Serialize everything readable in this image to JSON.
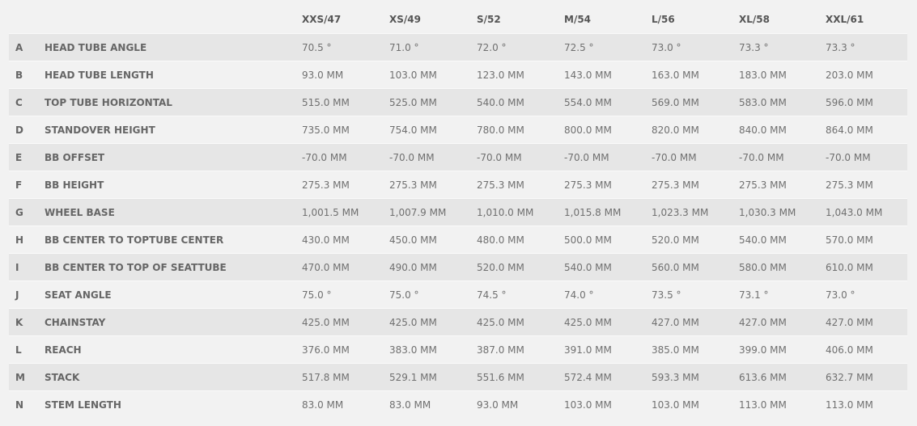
{
  "sizes": [
    "XXS/47",
    "XS/49",
    "S/52",
    "M/54",
    "L/56",
    "XL/58",
    "XXL/61"
  ],
  "rows": [
    {
      "letter": "A",
      "label": "HEAD TUBE ANGLE",
      "values": [
        "70.5 °",
        "71.0 °",
        "72.0 °",
        "72.5 °",
        "73.0 °",
        "73.3 °",
        "73.3 °"
      ]
    },
    {
      "letter": "B",
      "label": "HEAD TUBE LENGTH",
      "values": [
        "93.0 MM",
        "103.0 MM",
        "123.0 MM",
        "143.0 MM",
        "163.0 MM",
        "183.0 MM",
        "203.0 MM"
      ]
    },
    {
      "letter": "C",
      "label": "TOP TUBE HORIZONTAL",
      "values": [
        "515.0 MM",
        "525.0 MM",
        "540.0 MM",
        "554.0 MM",
        "569.0 MM",
        "583.0 MM",
        "596.0 MM"
      ]
    },
    {
      "letter": "D",
      "label": "STANDOVER HEIGHT",
      "values": [
        "735.0 MM",
        "754.0 MM",
        "780.0 MM",
        "800.0 MM",
        "820.0 MM",
        "840.0 MM",
        "864.0 MM"
      ]
    },
    {
      "letter": "E",
      "label": "BB OFFSET",
      "values": [
        "-70.0 MM",
        "-70.0 MM",
        "-70.0 MM",
        "-70.0 MM",
        "-70.0 MM",
        "-70.0 MM",
        "-70.0 MM"
      ]
    },
    {
      "letter": "F",
      "label": "BB HEIGHT",
      "values": [
        "275.3 MM",
        "275.3 MM",
        "275.3 MM",
        "275.3 MM",
        "275.3 MM",
        "275.3 MM",
        "275.3 MM"
      ]
    },
    {
      "letter": "G",
      "label": "WHEEL BASE",
      "values": [
        "1,001.5 MM",
        "1,007.9 MM",
        "1,010.0 MM",
        "1,015.8 MM",
        "1,023.3 MM",
        "1,030.3 MM",
        "1,043.0 MM"
      ]
    },
    {
      "letter": "H",
      "label": "BB CENTER TO TOPTUBE CENTER",
      "values": [
        "430.0 MM",
        "450.0 MM",
        "480.0 MM",
        "500.0 MM",
        "520.0 MM",
        "540.0 MM",
        "570.0 MM"
      ]
    },
    {
      "letter": "I",
      "label": "BB CENTER TO TOP OF SEATTUBE",
      "values": [
        "470.0 MM",
        "490.0 MM",
        "520.0 MM",
        "540.0 MM",
        "560.0 MM",
        "580.0 MM",
        "610.0 MM"
      ]
    },
    {
      "letter": "J",
      "label": "SEAT ANGLE",
      "values": [
        "75.0 °",
        "75.0 °",
        "74.5 °",
        "74.0 °",
        "73.5 °",
        "73.1 °",
        "73.0 °"
      ]
    },
    {
      "letter": "K",
      "label": "CHAINSTAY",
      "values": [
        "425.0 MM",
        "425.0 MM",
        "425.0 MM",
        "425.0 MM",
        "427.0 MM",
        "427.0 MM",
        "427.0 MM"
      ]
    },
    {
      "letter": "L",
      "label": "REACH",
      "values": [
        "376.0 MM",
        "383.0 MM",
        "387.0 MM",
        "391.0 MM",
        "385.0 MM",
        "399.0 MM",
        "406.0 MM"
      ]
    },
    {
      "letter": "M",
      "label": "STACK",
      "values": [
        "517.8 MM",
        "529.1 MM",
        "551.6 MM",
        "572.4 MM",
        "593.3 MM",
        "613.6 MM",
        "632.7 MM"
      ]
    },
    {
      "letter": "N",
      "label": "STEM LENGTH",
      "values": [
        "83.0 MM",
        "83.0 MM",
        "93.0 MM",
        "103.0 MM",
        "103.0 MM",
        "113.0 MM",
        "113.0 MM"
      ]
    }
  ]
}
